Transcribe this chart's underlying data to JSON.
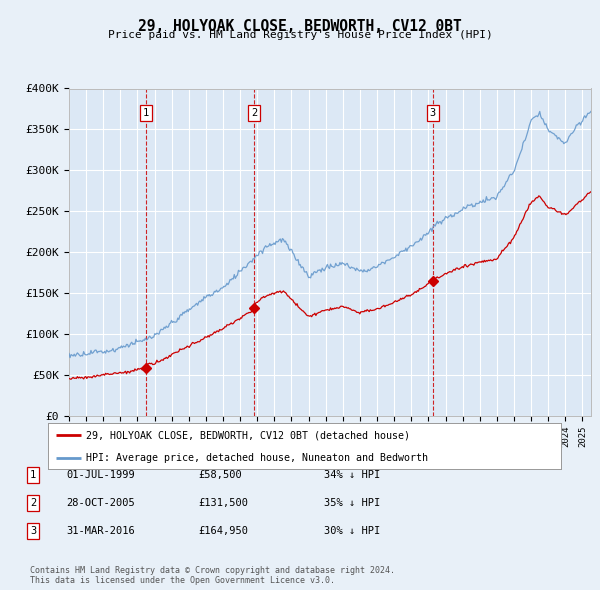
{
  "title": "29, HOLYOAK CLOSE, BEDWORTH, CV12 0BT",
  "subtitle": "Price paid vs. HM Land Registry's House Price Index (HPI)",
  "ylim": [
    0,
    400000
  ],
  "yticks": [
    0,
    50000,
    100000,
    150000,
    200000,
    250000,
    300000,
    350000,
    400000
  ],
  "ytick_labels": [
    "£0",
    "£50K",
    "£100K",
    "£150K",
    "£200K",
    "£250K",
    "£300K",
    "£350K",
    "£400K"
  ],
  "background_color": "#e8f0f8",
  "plot_bg_color": "#dce8f5",
  "grid_color": "#ffffff",
  "hpi_color": "#6699cc",
  "price_color": "#cc0000",
  "vline_color": "#cc0000",
  "transaction_dates": [
    1999.5,
    2005.83,
    2016.25
  ],
  "transaction_prices": [
    58500,
    131500,
    164950
  ],
  "transaction_labels": [
    "1",
    "2",
    "3"
  ],
  "legend_price_label": "29, HOLYOAK CLOSE, BEDWORTH, CV12 0BT (detached house)",
  "legend_hpi_label": "HPI: Average price, detached house, Nuneaton and Bedworth",
  "table_entries": [
    {
      "num": "1",
      "date": "01-JUL-1999",
      "price": "£58,500",
      "note": "34% ↓ HPI"
    },
    {
      "num": "2",
      "date": "28-OCT-2005",
      "price": "£131,500",
      "note": "35% ↓ HPI"
    },
    {
      "num": "3",
      "date": "31-MAR-2016",
      "price": "£164,950",
      "note": "30% ↓ HPI"
    }
  ],
  "footer": "Contains HM Land Registry data © Crown copyright and database right 2024.\nThis data is licensed under the Open Government Licence v3.0.",
  "xmin": 1995.0,
  "xmax": 2025.5
}
